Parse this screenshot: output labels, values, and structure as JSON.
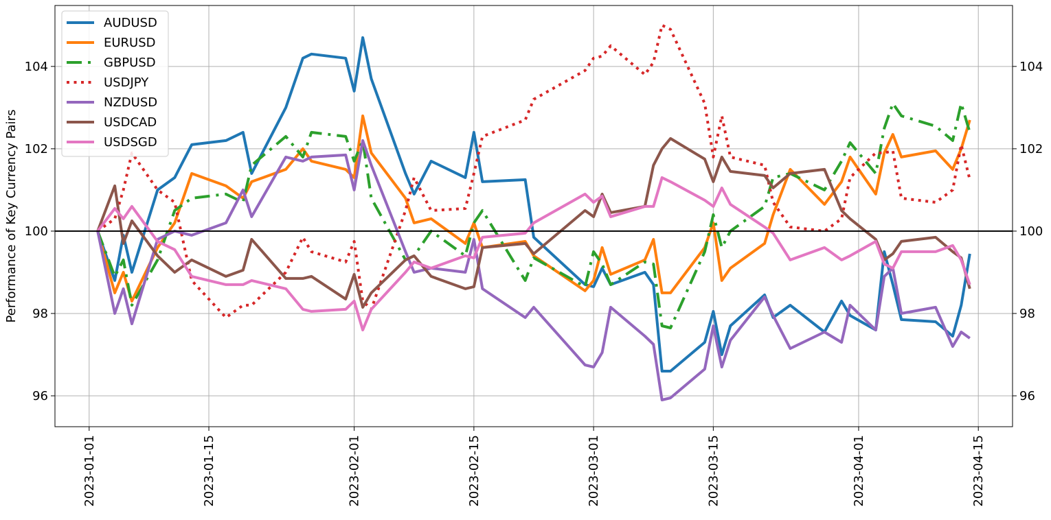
{
  "chart_data": {
    "type": "line",
    "ylabel": "Performance of Key Currency Pairs",
    "x": [
      "2023-01-02",
      "2023-01-04",
      "2023-01-05",
      "2023-01-06",
      "2023-01-09",
      "2023-01-11",
      "2023-01-13",
      "2023-01-17",
      "2023-01-19",
      "2023-01-20",
      "2023-01-24",
      "2023-01-26",
      "2023-01-27",
      "2023-01-31",
      "2023-02-01",
      "2023-02-02",
      "2023-02-03",
      "2023-02-07",
      "2023-02-08",
      "2023-02-10",
      "2023-02-14",
      "2023-02-15",
      "2023-02-16",
      "2023-02-21",
      "2023-02-22",
      "2023-02-28",
      "2023-03-01",
      "2023-03-02",
      "2023-03-03",
      "2023-03-07",
      "2023-03-08",
      "2023-03-09",
      "2023-03-10",
      "2023-03-14",
      "2023-03-15",
      "2023-03-16",
      "2023-03-17",
      "2023-03-21",
      "2023-03-22",
      "2023-03-24",
      "2023-03-28",
      "2023-03-30",
      "2023-03-31",
      "2023-04-03",
      "2023-04-04",
      "2023-04-05",
      "2023-04-06",
      "2023-04-10",
      "2023-04-12",
      "2023-04-13",
      "2023-04-14"
    ],
    "series": [
      {
        "name": "AUDUSD",
        "color": "#1f77b4",
        "style": "solid",
        "values": [
          100,
          98.8,
          99.9,
          99.0,
          101.0,
          101.3,
          102.1,
          102.2,
          102.4,
          101.4,
          103.0,
          104.2,
          104.3,
          104.2,
          103.4,
          104.7,
          103.7,
          101.4,
          100.9,
          101.7,
          101.3,
          102.4,
          101.2,
          101.25,
          99.85,
          98.7,
          98.65,
          99.1,
          98.7,
          99.0,
          98.7,
          96.6,
          96.6,
          97.3,
          98.05,
          97.0,
          97.7,
          98.45,
          97.9,
          98.2,
          97.55,
          98.3,
          97.95,
          97.6,
          99.5,
          98.7,
          97.85,
          97.8,
          97.45,
          98.2,
          99.45
        ]
      },
      {
        "name": "EURUSD",
        "color": "#ff7f0e",
        "style": "solid",
        "values": [
          100,
          98.5,
          99.0,
          98.3,
          99.6,
          100.2,
          101.4,
          101.1,
          100.8,
          101.2,
          101.5,
          102.0,
          101.7,
          101.5,
          101.3,
          102.8,
          101.9,
          100.8,
          100.2,
          100.3,
          99.7,
          100.2,
          99.6,
          99.75,
          99.4,
          98.55,
          98.8,
          99.6,
          98.95,
          99.3,
          99.8,
          98.5,
          98.5,
          99.6,
          100.2,
          98.8,
          99.1,
          99.7,
          100.4,
          101.5,
          100.65,
          101.2,
          101.8,
          100.9,
          101.9,
          102.35,
          101.8,
          101.95,
          101.5,
          102.0,
          102.7
        ]
      },
      {
        "name": "GBPUSD",
        "color": "#2ca02c",
        "style": "dashdot",
        "values": [
          100,
          98.9,
          99.3,
          98.2,
          99.3,
          100.5,
          100.8,
          100.9,
          100.7,
          101.6,
          102.3,
          101.8,
          102.4,
          102.3,
          101.7,
          102.2,
          100.8,
          99.3,
          99.4,
          100.0,
          99.4,
          100.2,
          100.5,
          98.8,
          99.35,
          98.65,
          99.5,
          99.2,
          98.7,
          99.25,
          99.2,
          97.7,
          97.65,
          99.5,
          100.4,
          99.6,
          100.0,
          100.6,
          101.3,
          101.4,
          101.0,
          101.7,
          102.15,
          101.4,
          102.5,
          103.1,
          102.8,
          102.55,
          102.2,
          103.1,
          102.4
        ]
      },
      {
        "name": "USDJPY",
        "color": "#d62728",
        "style": "dotted",
        "values": [
          100,
          100.3,
          101.0,
          101.9,
          101.0,
          100.7,
          98.8,
          97.9,
          98.2,
          98.2,
          99.0,
          99.85,
          99.5,
          99.25,
          99.75,
          98.3,
          98.1,
          100.5,
          101.3,
          100.5,
          100.55,
          101.4,
          102.3,
          102.7,
          103.2,
          103.9,
          104.2,
          104.25,
          104.5,
          103.8,
          104.1,
          105.0,
          104.9,
          103.1,
          101.8,
          102.8,
          101.8,
          101.6,
          100.7,
          100.1,
          100.0,
          100.3,
          101.3,
          101.9,
          101.9,
          101.95,
          100.8,
          100.7,
          101.0,
          102.1,
          101.25
        ]
      },
      {
        "name": "NZDUSD",
        "color": "#9467bd",
        "style": "solid",
        "values": [
          100,
          98.0,
          98.6,
          97.75,
          99.8,
          100.0,
          99.9,
          100.2,
          101.0,
          100.35,
          101.8,
          101.7,
          101.8,
          101.85,
          101.0,
          102.2,
          101.6,
          99.5,
          99.0,
          99.1,
          99.0,
          99.8,
          98.6,
          97.9,
          98.15,
          96.75,
          96.7,
          97.05,
          98.15,
          97.45,
          97.25,
          95.9,
          95.95,
          96.65,
          97.7,
          96.7,
          97.35,
          98.4,
          97.95,
          97.15,
          97.55,
          97.3,
          98.2,
          97.6,
          98.9,
          99.1,
          98.0,
          98.15,
          97.2,
          97.55,
          97.4
        ]
      },
      {
        "name": "USDCAD",
        "color": "#8c564b",
        "style": "solid",
        "values": [
          100,
          101.1,
          99.7,
          100.25,
          99.4,
          99.0,
          99.3,
          98.9,
          99.05,
          99.8,
          98.85,
          98.85,
          98.9,
          98.35,
          98.95,
          98.15,
          98.5,
          99.3,
          99.4,
          98.9,
          98.6,
          98.65,
          99.6,
          99.7,
          99.45,
          100.5,
          100.35,
          100.9,
          100.45,
          100.6,
          101.6,
          102.0,
          102.25,
          101.75,
          101.2,
          101.8,
          101.45,
          101.35,
          101.05,
          101.4,
          101.5,
          100.5,
          100.3,
          99.8,
          99.3,
          99.45,
          99.75,
          99.85,
          99.5,
          99.35,
          98.6
        ]
      },
      {
        "name": "USDSGD",
        "color": "#e377c2",
        "style": "solid",
        "values": [
          100,
          100.55,
          100.3,
          100.6,
          99.75,
          99.55,
          98.9,
          98.7,
          98.7,
          98.8,
          98.6,
          98.1,
          98.05,
          98.1,
          98.3,
          97.6,
          98.1,
          99.0,
          99.25,
          99.1,
          99.4,
          99.35,
          99.85,
          99.95,
          100.2,
          100.9,
          100.7,
          100.85,
          100.35,
          100.6,
          100.6,
          101.3,
          101.2,
          100.75,
          100.6,
          101.05,
          100.65,
          100.1,
          99.95,
          99.3,
          99.6,
          99.3,
          99.4,
          99.75,
          99.2,
          99.1,
          99.5,
          99.5,
          99.65,
          99.3,
          98.7
        ]
      }
    ],
    "xlim": [
      "2022-12-28",
      "2023-04-19"
    ],
    "xticks": [
      "2023-01-01",
      "2023-01-15",
      "2023-02-01",
      "2023-02-15",
      "2023-03-01",
      "2023-03-15",
      "2023-04-01",
      "2023-04-15"
    ],
    "ylim": [
      95.25,
      105.48
    ],
    "yticks": [
      96,
      98,
      100,
      102,
      104
    ],
    "y2lim": [
      95.25,
      105.48
    ],
    "y2ticks": [
      96,
      98,
      100,
      102,
      104
    ],
    "hline": 100,
    "grid": true,
    "legend": "upper left"
  }
}
